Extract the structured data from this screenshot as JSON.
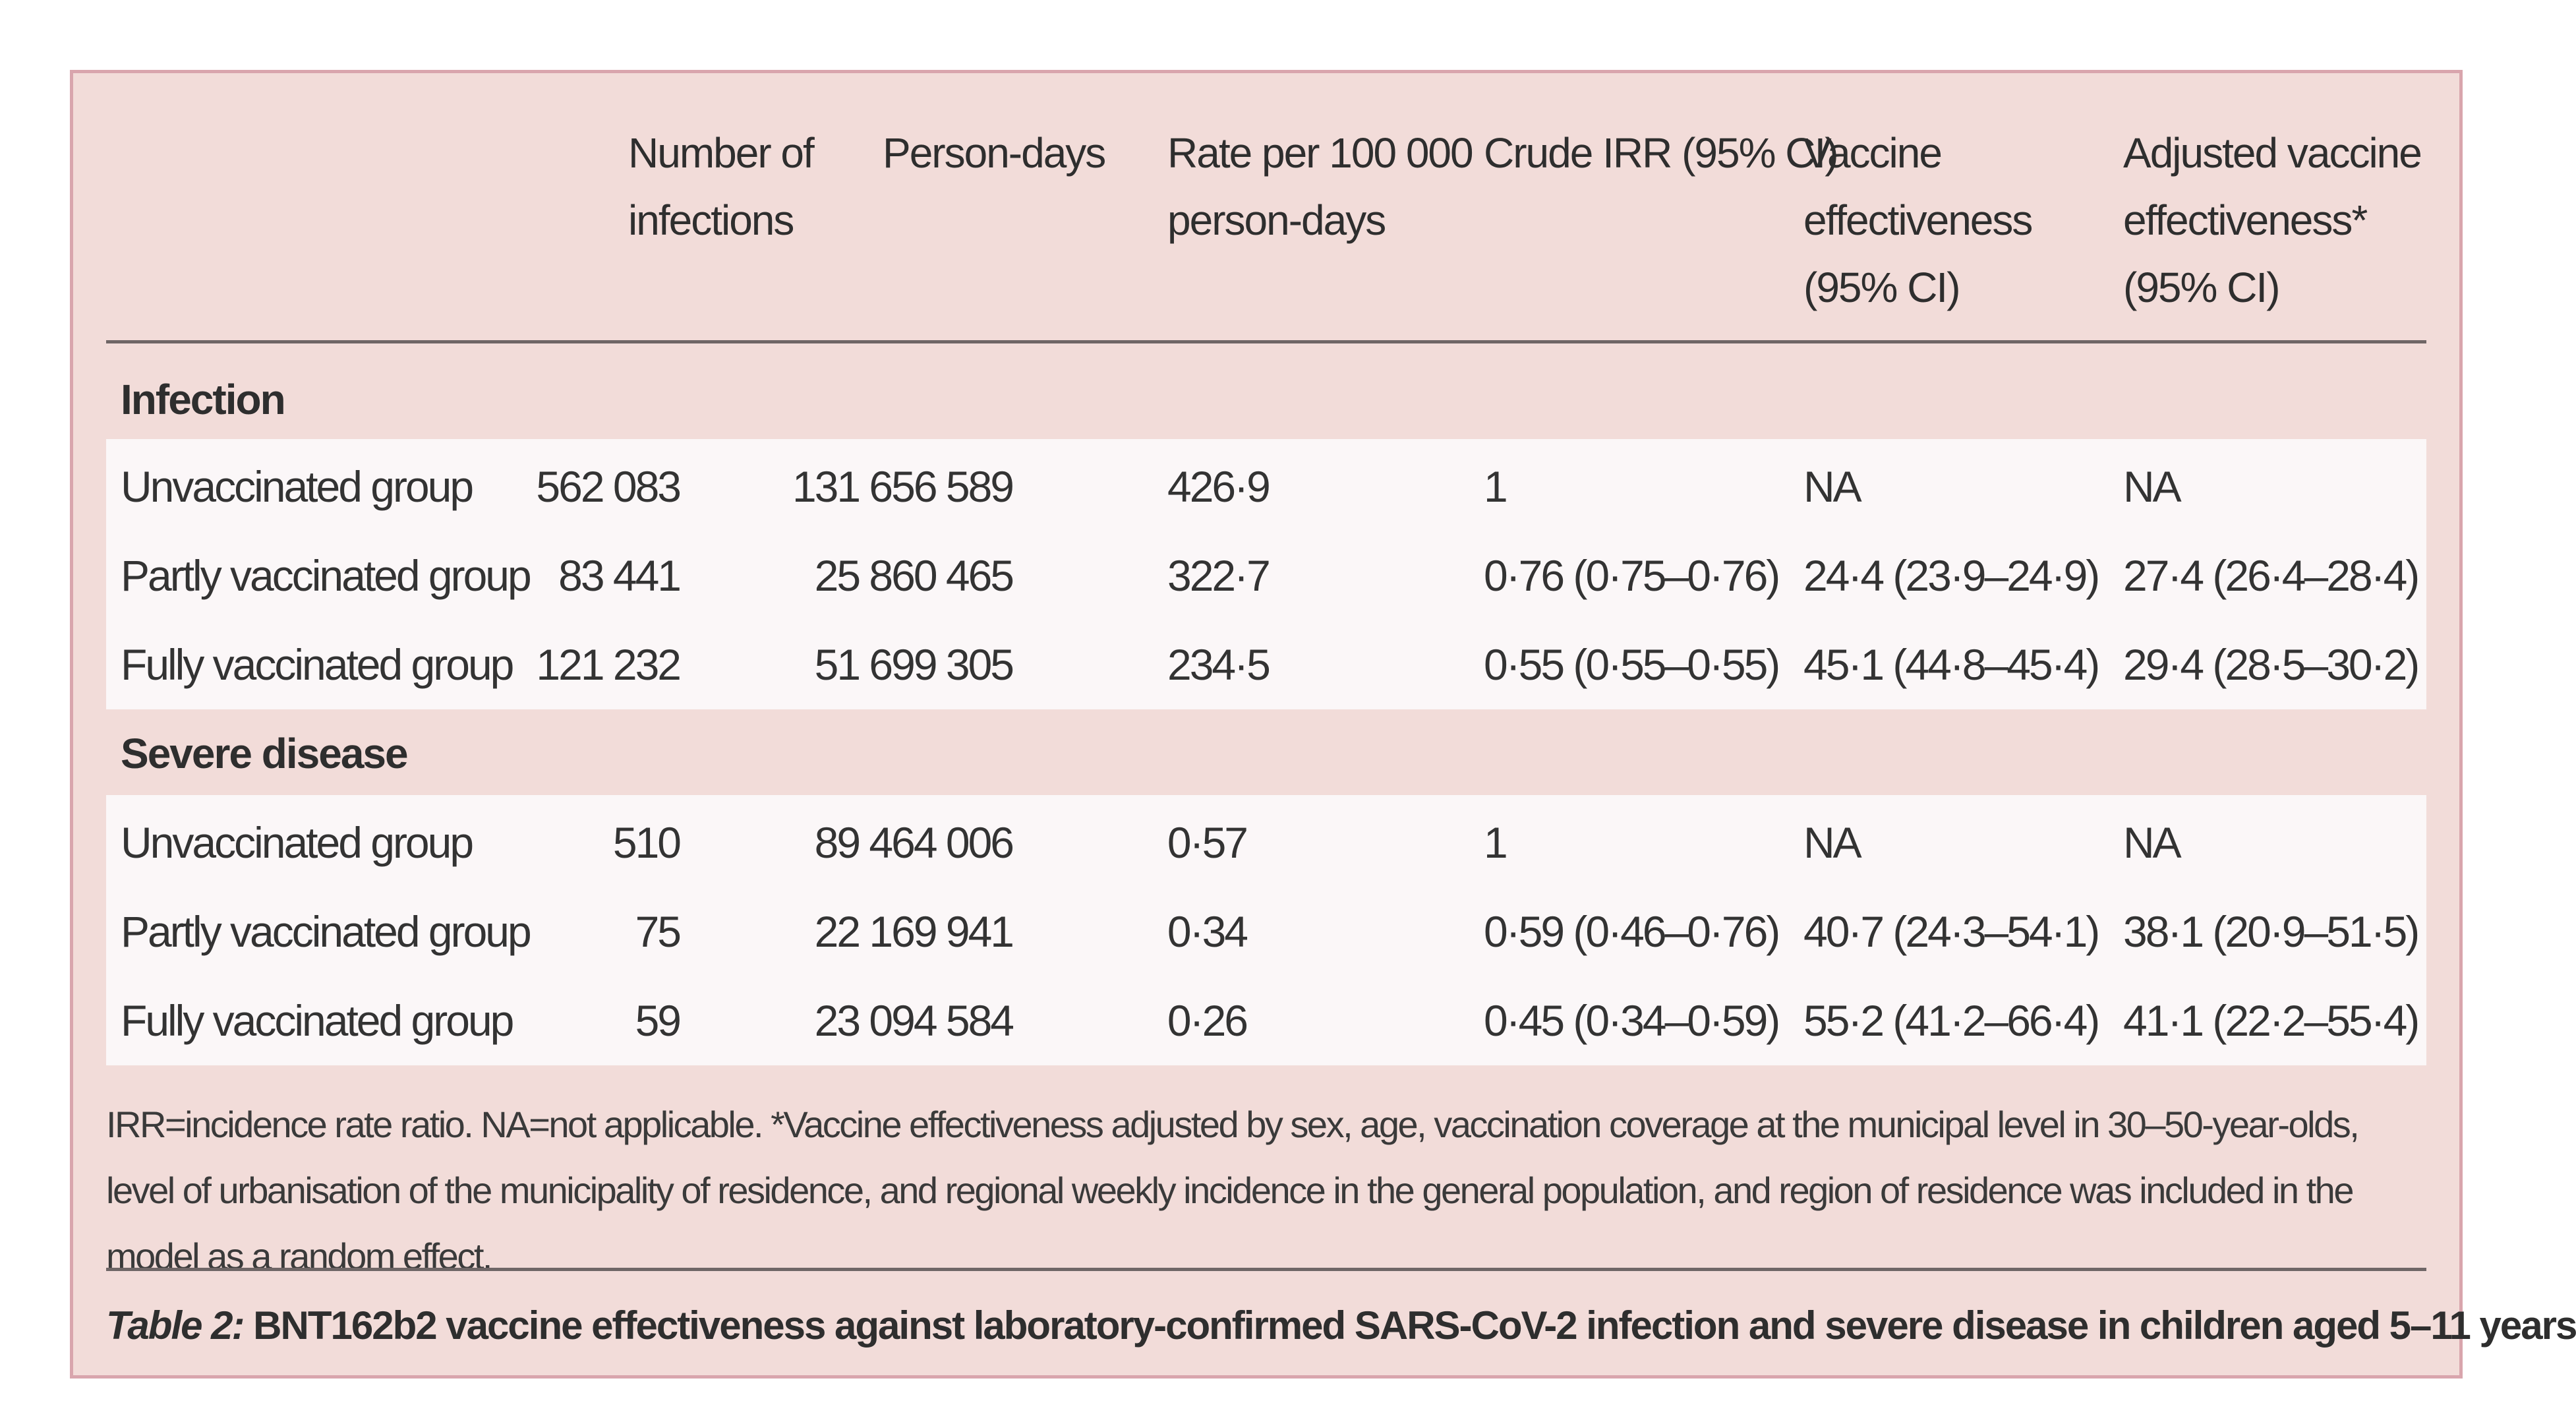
{
  "table": {
    "headers": {
      "number_of_infections": "Number of\ninfections",
      "person_days": "Person-days",
      "rate": "Rate per 100 000\nperson-days",
      "crude_irr": "Crude IRR (95% CI)",
      "vaccine_effectiveness": "Vaccine\neffectiveness\n(95% CI)",
      "adjusted_vaccine_effectiveness": "Adjusted vaccine\neffectiveness*\n(95% CI)"
    },
    "sections": [
      {
        "label": "Infection",
        "rows": [
          {
            "group": "Unvaccinated group",
            "infections": "562 083",
            "person_days": "131 656 589",
            "rate": "426·9",
            "crude_irr": "1",
            "ve": "NA",
            "adjusted_ve": "NA"
          },
          {
            "group": "Partly vaccinated group",
            "infections": "83 441",
            "person_days": "25 860 465",
            "rate": "322·7",
            "crude_irr": "0·76 (0·75–0·76)",
            "ve": "24·4 (23·9–24·9)",
            "adjusted_ve": "27·4 (26·4–28·4)"
          },
          {
            "group": "Fully vaccinated group",
            "infections": "121 232",
            "person_days": "51 699 305",
            "rate": "234·5",
            "crude_irr": "0·55 (0·55–0·55)",
            "ve": "45·1 (44·8–45·4)",
            "adjusted_ve": "29·4 (28·5–30·2)"
          }
        ]
      },
      {
        "label": "Severe disease",
        "rows": [
          {
            "group": "Unvaccinated group",
            "infections": "510",
            "person_days": "89 464 006",
            "rate": "0·57",
            "crude_irr": "1",
            "ve": "NA",
            "adjusted_ve": "NA"
          },
          {
            "group": "Partly vaccinated group",
            "infections": "75",
            "person_days": "22 169 941",
            "rate": "0·34",
            "crude_irr": "0·59 (0·46–0·76)",
            "ve": "40·7 (24·3–54·1)",
            "adjusted_ve": "38·1 (20·9–51·5)"
          },
          {
            "group": "Fully vaccinated group",
            "infections": "59",
            "person_days": "23 094 584",
            "rate": "0·26",
            "crude_irr": "0·45 (0·34–0·59)",
            "ve": "55·2 (41·2–66·4)",
            "adjusted_ve": "41·1 (22·2–55·4)"
          }
        ]
      }
    ],
    "footnote": "IRR=incidence rate ratio. NA=not applicable. *Vaccine effectiveness adjusted by sex, age, vaccination coverage at the municipal level in 30–50-year-olds, level of urbanisation of the municipality of residence, and regional weekly incidence in the general population, and region of residence was included in the model as a random effect.",
    "caption_label": "Table 2:",
    "caption_text": " BNT162b2 vaccine effectiveness against laboratory-confirmed SARS-CoV-2 infection and severe disease in children aged 5–11 years"
  },
  "colors": {
    "panel_background": "#f2dcd9",
    "panel_border": "#d9a5ad",
    "row_band": "#fbf7f8",
    "rule": "#6f6666"
  }
}
